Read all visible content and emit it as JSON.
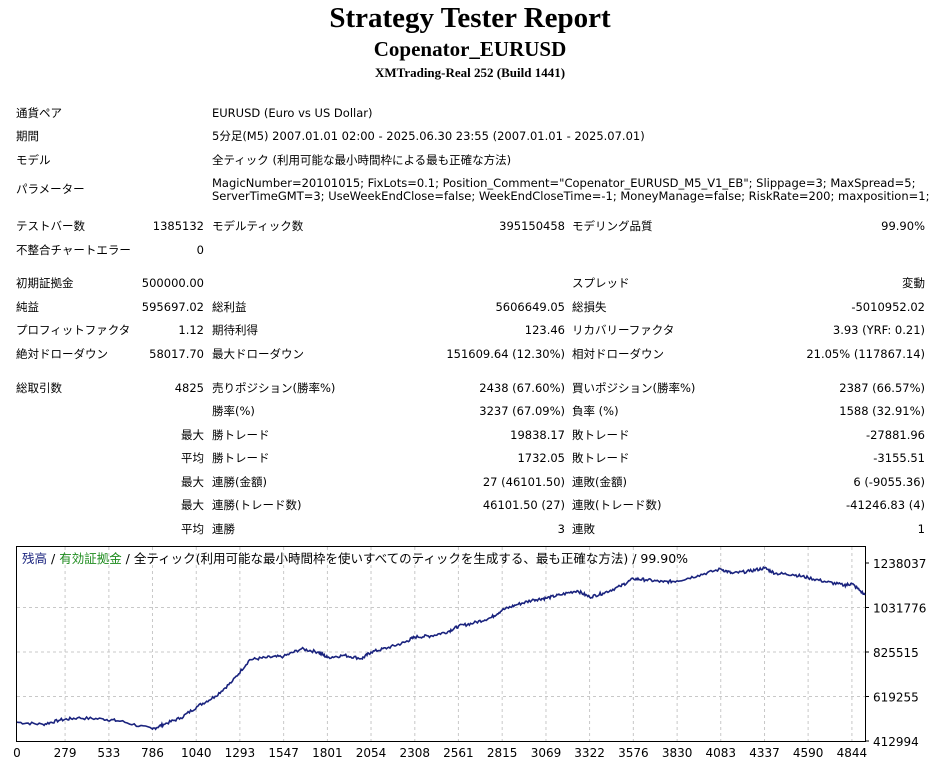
{
  "header": {
    "title": "Strategy Tester Report",
    "subtitle": "Copenator_EURUSD",
    "build": "XMTrading-Real 252 (Build 1441)"
  },
  "info": {
    "symbol_label": "通貨ペア",
    "symbol_value": "EURUSD (Euro vs US Dollar)",
    "period_label": "期間",
    "period_value": "5分足(M5) 2007.01.01 02:00 - 2025.06.30 23:55 (2007.01.01 - 2025.07.01)",
    "model_label": "モデル",
    "model_value": "全ティック (利用可能な最小時間枠による最も正確な方法)",
    "params_label": "パラメーター",
    "params_line1": "MagicNumber=20101015; FixLots=0.1; Position_Comment=\"Copenator_EURUSD_M5_V1_EB\"; Slippage=3; MaxSpread=5;",
    "params_line2": "ServerTimeGMT=3; UseWeekEndClose=false; WeekEndCloseTime=-1; MoneyManage=false; RiskRate=200; maxposition=1;"
  },
  "bars": {
    "test_bars_label": "テストバー数",
    "test_bars_value": "1385132",
    "model_ticks_label": "モデルティック数",
    "model_ticks_value": "395150458",
    "quality_label": "モデリング品質",
    "quality_value": "99.90%",
    "mismatch_label": "不整合チャートエラー",
    "mismatch_value": "0"
  },
  "stats": {
    "deposit_label": "初期証拠金",
    "deposit_value": "500000.00",
    "spread_label": "スプレッド",
    "spread_value": "変動",
    "net_label": "純益",
    "net_value": "595697.02",
    "gross_profit_label": "総利益",
    "gross_profit_value": "5606649.05",
    "gross_loss_label": "総損失",
    "gross_loss_value": "-5010952.02",
    "pf_label": "プロフィットファクタ",
    "pf_value": "1.12",
    "payoff_label": "期待利得",
    "payoff_value": "123.46",
    "recovery_label": "リカバリーファクタ",
    "recovery_value": "3.93 (YRF: 0.21)",
    "abs_dd_label": "絶対ドローダウン",
    "abs_dd_value": "58017.70",
    "max_dd_label": "最大ドローダウン",
    "max_dd_value": "151609.64 (12.30%)",
    "rel_dd_label": "相対ドローダウン",
    "rel_dd_value": "21.05% (117867.14)"
  },
  "trades": {
    "total_label": "総取引数",
    "total_value": "4825",
    "short_label": "売りポジション(勝率%)",
    "short_value": "2438 (67.60%)",
    "long_label": "買いポジション(勝率%)",
    "long_value": "2387 (66.57%)",
    "win_label": "勝率(%)",
    "win_value": "3237 (67.09%)",
    "loss_label": "負率 (%)",
    "loss_value": "1588 (32.91%)",
    "max_label": "最大",
    "avg_label": "平均",
    "best_label": "勝トレード",
    "best_value": "19838.17",
    "worst_label": "敗トレード",
    "worst_value": "-27881.96",
    "avg_win_label": "勝トレード",
    "avg_win_value": "1732.05",
    "avg_loss_label": "敗トレード",
    "avg_loss_value": "-3155.51",
    "max_consec_win_label": "連勝(金額)",
    "max_consec_win_value": "27 (46101.50)",
    "max_consec_loss_label": "連敗(金額)",
    "max_consec_loss_value": "6 (-9055.36)",
    "max_consec_profit_label": "連勝(トレード数)",
    "max_consec_profit_value": "46101.50 (27)",
    "max_consec_lossamt_label": "連敗(トレード数)",
    "max_consec_lossamt_value": "-41246.83 (4)",
    "avg_consec_win_label": "連勝",
    "avg_consec_win_value": "3",
    "avg_consec_loss_label": "連敗",
    "avg_consec_loss_value": "1"
  },
  "colors": {
    "balance": "#1a237e",
    "equity": "#1e8c1e",
    "grid": "#c8c8c8"
  },
  "chart_data": {
    "type": "line",
    "legend_balance": "残高",
    "legend_sep": " / ",
    "legend_equity": "有効証拠金",
    "legend_rest": " / 全ティック(利用可能な最小時間枠を使いすべてのティックを生成する、最も正確な方法) / 99.90%",
    "ylim": [
      412994,
      1238037
    ],
    "xlim": [
      0,
      4920
    ],
    "yticks": [
      "1238037",
      "1031776",
      "825515",
      "619255",
      "412994"
    ],
    "ytick_values": [
      1238037,
      1031776,
      825515,
      619255,
      412994
    ],
    "xticks": [
      "0",
      "279",
      "533",
      "786",
      "1040",
      "1293",
      "1547",
      "1801",
      "2054",
      "2308",
      "2561",
      "2815",
      "3069",
      "3322",
      "3576",
      "3830",
      "4083",
      "4337",
      "4590",
      "4844"
    ],
    "xtick_values": [
      0,
      279,
      533,
      786,
      1040,
      1293,
      1547,
      1801,
      2054,
      2308,
      2561,
      2815,
      3069,
      3322,
      3576,
      3830,
      4083,
      4337,
      4590,
      4844
    ],
    "series": [
      {
        "name": "残高",
        "x": [
          0,
          150,
          250,
          350,
          500,
          600,
          786,
          850,
          950,
          1050,
          1150,
          1250,
          1350,
          1450,
          1547,
          1650,
          1750,
          1801,
          1900,
          2000,
          2054,
          2150,
          2250,
          2308,
          2400,
          2500,
          2561,
          2650,
          2750,
          2815,
          2900,
          3000,
          3069,
          3150,
          3250,
          3322,
          3400,
          3500,
          3576,
          3650,
          3750,
          3830,
          3950,
          4083,
          4150,
          4250,
          4337,
          4400,
          4500,
          4590,
          4700,
          4800,
          4844,
          4920
        ],
        "y": [
          500000,
          490000,
          510000,
          520000,
          515000,
          505000,
          468000,
          490000,
          520000,
          575000,
          620000,
          690000,
          790000,
          800000,
          805000,
          840000,
          825000,
          800000,
          810000,
          795000,
          825000,
          845000,
          870000,
          895000,
          900000,
          920000,
          945000,
          960000,
          985000,
          1020000,
          1045000,
          1068000,
          1075000,
          1090000,
          1110000,
          1080000,
          1098000,
          1130000,
          1165000,
          1160000,
          1150000,
          1155000,
          1180000,
          1210000,
          1190000,
          1200000,
          1215000,
          1190000,
          1185000,
          1170000,
          1150000,
          1135000,
          1142000,
          1090000
        ]
      }
    ]
  }
}
